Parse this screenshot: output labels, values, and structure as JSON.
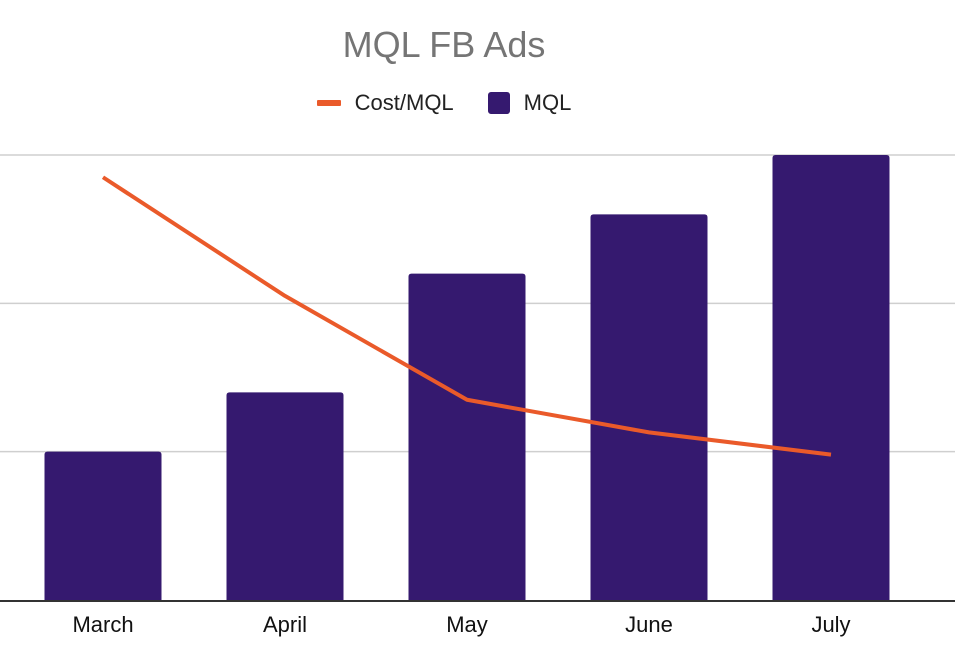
{
  "chart_data": {
    "type": "bar",
    "title": "MQL FB Ads",
    "xlabel": "",
    "ylabel": "",
    "categories": [
      "March",
      "April",
      "May",
      "June",
      "July"
    ],
    "series": [
      {
        "name": "MQL",
        "type": "bar",
        "axis": "left",
        "color": "#35196f",
        "values": [
          2,
          2.8,
          4.4,
          5.2,
          6
        ]
      },
      {
        "name": "Cost/MQL",
        "type": "line",
        "axis": "right",
        "color": "#ea5a2a",
        "values": [
          2.85,
          2.05,
          1.35,
          1.13,
          0.98
        ]
      }
    ],
    "ylim_left": [
      0,
      6
    ],
    "ylim_right": [
      0,
      3
    ],
    "grid": true,
    "legend_position": "top"
  }
}
